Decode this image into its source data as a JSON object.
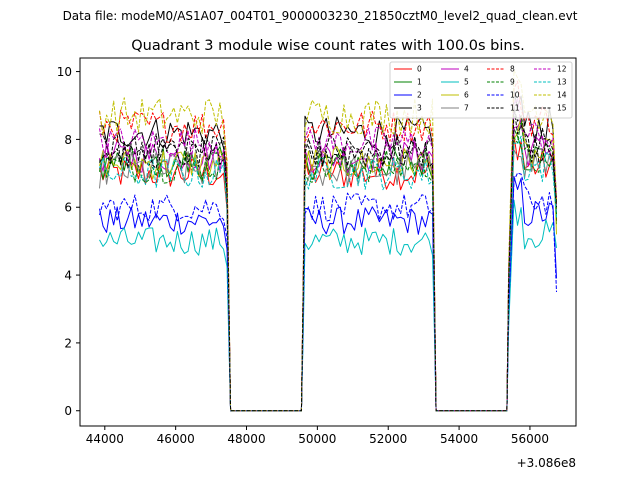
{
  "chart_data": {
    "type": "line",
    "suptitle": "Data file: modeM0/AS1A07_004T01_9000003230_21850cztM0_level2_quad_clean.evt",
    "title": "Quadrant 3 module wise count rates with 100.0s bins.",
    "xlabel": "",
    "ylabel": "",
    "x_offset_label": "+3.086e8",
    "xlim": [
      43300,
      57300
    ],
    "ylim": [
      -0.45,
      10.4
    ],
    "x_ticks": [
      44000,
      46000,
      48000,
      50000,
      52000,
      54000,
      56000
    ],
    "x_tick_labels": [
      "44000",
      "46000",
      "48000",
      "50000",
      "52000",
      "54000",
      "56000"
    ],
    "y_ticks": [
      0,
      2,
      4,
      6,
      8,
      10
    ],
    "y_tick_labels": [
      "0",
      "2",
      "4",
      "6",
      "8",
      "10"
    ],
    "legend_position": "top-right",
    "segments": [
      {
        "start": 43850,
        "end": 47350
      },
      {
        "start": 49650,
        "end": 53250
      },
      {
        "start": 55550,
        "end": 56750
      }
    ],
    "gaps": [
      {
        "start": 47550,
        "end": 49550
      },
      {
        "start": 53350,
        "end": 55350
      }
    ],
    "series": [
      {
        "name": "0",
        "color": "#ff0000",
        "dash": "solid",
        "level": 7.0,
        "amp": 0.35,
        "end_value": 5.8
      },
      {
        "name": "1",
        "color": "#008000",
        "dash": "solid",
        "level": 7.3,
        "amp": 0.35,
        "end_value": 5.5
      },
      {
        "name": "2",
        "color": "#0000ff",
        "dash": "solid",
        "level": 5.6,
        "amp": 0.3,
        "end_value": 3.9
      },
      {
        "name": "3",
        "color": "#000000",
        "dash": "solid",
        "level": 8.2,
        "amp": 0.35,
        "end_value": 5.6
      },
      {
        "name": "4",
        "color": "#bf00bf",
        "dash": "solid",
        "level": 7.5,
        "amp": 0.35,
        "end_value": 6.0
      },
      {
        "name": "5",
        "color": "#00bfbf",
        "dash": "solid",
        "level": 5.0,
        "amp": 0.3,
        "end_value": 4.8
      },
      {
        "name": "6",
        "color": "#bfbf00",
        "dash": "solid",
        "level": 7.3,
        "amp": 0.35,
        "end_value": 5.2
      },
      {
        "name": "7",
        "color": "#808080",
        "dash": "solid",
        "level": 7.1,
        "amp": 0.4,
        "end_value": 5.9
      },
      {
        "name": "8",
        "color": "#ff0000",
        "dash": "dashed",
        "level": 8.4,
        "amp": 0.35,
        "end_value": 6.2
      },
      {
        "name": "9",
        "color": "#008000",
        "dash": "dashed",
        "level": 7.2,
        "amp": 0.35,
        "end_value": 5.8
      },
      {
        "name": "10",
        "color": "#0000ff",
        "dash": "dashed",
        "level": 6.0,
        "amp": 0.3,
        "end_value": 3.5
      },
      {
        "name": "11",
        "color": "#000000",
        "dash": "dashed",
        "level": 7.7,
        "amp": 0.35,
        "end_value": 6.0
      },
      {
        "name": "12",
        "color": "#bf00bf",
        "dash": "dashed",
        "level": 7.9,
        "amp": 0.35,
        "end_value": 6.3
      },
      {
        "name": "13",
        "color": "#00bfbf",
        "dash": "dashed",
        "level": 7.0,
        "amp": 0.35,
        "end_value": 5.7
      },
      {
        "name": "14",
        "color": "#bfbf00",
        "dash": "dashed",
        "level": 8.7,
        "amp": 0.4,
        "end_value": 6.2
      },
      {
        "name": "15",
        "color": "#000000",
        "dash": "dashed",
        "level": 7.6,
        "amp": 0.35,
        "end_value": 6.1
      }
    ]
  }
}
